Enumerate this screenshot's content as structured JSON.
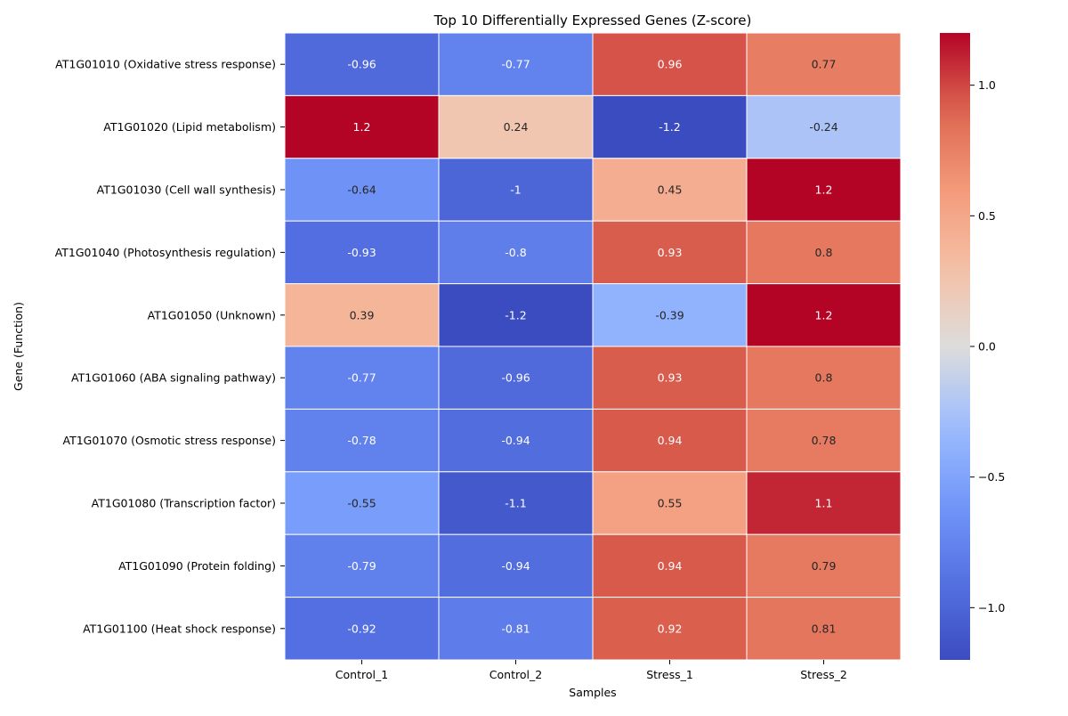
{
  "chart_data": {
    "type": "heatmap",
    "title": "Top 10 Differentially Expressed Genes (Z-score)",
    "xlabel": "Samples",
    "ylabel": "Gene (Function)",
    "columns": [
      "Control_1",
      "Control_2",
      "Stress_1",
      "Stress_2"
    ],
    "rows": [
      "AT1G01010 (Oxidative stress response)",
      "AT1G01020 (Lipid metabolism)",
      "AT1G01030 (Cell wall synthesis)",
      "AT1G01040 (Photosynthesis regulation)",
      "AT1G01050 (Unknown)",
      "AT1G01060 (ABA signaling pathway)",
      "AT1G01070 (Osmotic stress response)",
      "AT1G01080 (Transcription factor)",
      "AT1G01090 (Protein folding)",
      "AT1G01100 (Heat shock response)"
    ],
    "values": [
      [
        -0.96,
        -0.77,
        0.96,
        0.77
      ],
      [
        1.2,
        0.24,
        -1.2,
        -0.24
      ],
      [
        -0.64,
        -1,
        0.45,
        1.2
      ],
      [
        -0.93,
        -0.8,
        0.93,
        0.8
      ],
      [
        0.39,
        -1.2,
        -0.39,
        1.2
      ],
      [
        -0.77,
        -0.96,
        0.93,
        0.8
      ],
      [
        -0.78,
        -0.94,
        0.94,
        0.78
      ],
      [
        -0.55,
        -1.1,
        0.55,
        1.1
      ],
      [
        -0.79,
        -0.94,
        0.94,
        0.79
      ],
      [
        -0.92,
        -0.81,
        0.92,
        0.81
      ]
    ],
    "colorscale": "coolwarm",
    "colorbar": {
      "range": [
        -1.2,
        1.2
      ],
      "ticks": [
        -1.0,
        -0.5,
        0.0,
        0.5,
        1.0
      ],
      "tick_labels": [
        "−1.0",
        "−0.5",
        "0.0",
        "0.5",
        "1.0"
      ]
    },
    "annotations": true
  }
}
